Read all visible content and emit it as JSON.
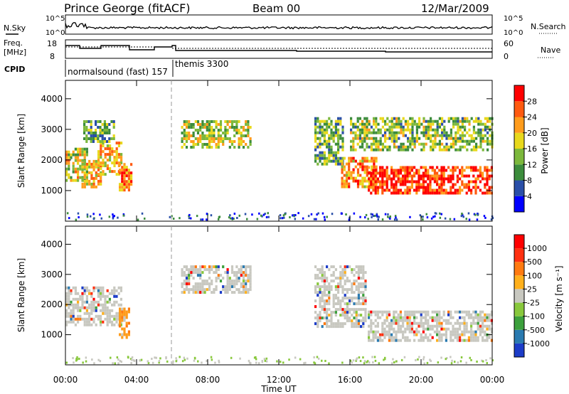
{
  "header": {
    "station": "Prince George (fitACF)",
    "beam": "Beam 00",
    "date": "12/Mar/2009"
  },
  "noise_panel": {
    "left_label": "N.Sky",
    "right_label": "N.Search",
    "left_top_tick": "10^5",
    "left_bottom_tick": "10^0",
    "right_top_tick": "10^5",
    "right_bottom_tick": "10^0"
  },
  "freq_panel": {
    "left_label_1": "Freq.",
    "left_label_2": "[MHz]",
    "right_label": "Nave",
    "left_top_tick": "18",
    "left_bottom_tick": "8",
    "right_top_tick": "60",
    "right_bottom_tick": "0"
  },
  "cpid_panel": {
    "label": "CPID",
    "mode1": "normalsound (fast) 157",
    "mode2": "themis 3300"
  },
  "colors": {
    "velocity_gray": "#c8c8c0",
    "power_high": "#ff0000",
    "power_low": "#0000ff"
  },
  "chart_data": [
    {
      "type": "heatmap",
      "name": "power",
      "ylabel": "Slant Range [km]",
      "ylim": [
        0,
        4600
      ],
      "xlim": [
        0,
        24
      ],
      "y_ticks": [
        1000,
        2000,
        3000,
        4000
      ],
      "colorbar_label": "Power [dB]",
      "colorbar_ticks": [
        "4",
        "8",
        "12",
        "16",
        "20",
        "24",
        "28"
      ],
      "colorbar_colors": [
        "#0000ff",
        "#2a4fa8",
        "#3c8c3c",
        "#7cb83c",
        "#e8d81c",
        "#ff9c1c",
        "#ff5a10",
        "#ff0000"
      ],
      "regions": [
        {
          "t0": 0.0,
          "t1": 1.3,
          "r0": 1300,
          "r1": 2400,
          "level": 0.55
        },
        {
          "t0": 0.9,
          "t1": 2.0,
          "r0": 1100,
          "r1": 2000,
          "level": 0.6
        },
        {
          "t0": 1.8,
          "t1": 3.2,
          "r0": 1500,
          "r1": 2600,
          "level": 0.65
        },
        {
          "t0": 3.0,
          "t1": 3.8,
          "r0": 1000,
          "r1": 1900,
          "level": 0.75
        },
        {
          "t0": 1.0,
          "t1": 2.8,
          "r0": 2600,
          "r1": 3300,
          "level": 0.35
        },
        {
          "t0": 6.5,
          "t1": 10.5,
          "r0": 2400,
          "r1": 3300,
          "level": 0.5
        },
        {
          "t0": 14.0,
          "t1": 15.6,
          "r0": 1800,
          "r1": 3400,
          "level": 0.4
        },
        {
          "t0": 15.5,
          "t1": 17.5,
          "r0": 1100,
          "r1": 2100,
          "level": 0.7
        },
        {
          "t0": 17.0,
          "t1": 24.0,
          "r0": 900,
          "r1": 1800,
          "level": 0.88
        },
        {
          "t0": 16.0,
          "t1": 24.0,
          "r0": 2300,
          "r1": 3400,
          "level": 0.45
        }
      ]
    },
    {
      "type": "heatmap",
      "name": "velocity",
      "ylabel": "Slant Range [km]",
      "ylim": [
        0,
        4600
      ],
      "xlim": [
        0,
        24
      ],
      "y_ticks": [
        1000,
        2000,
        3000,
        4000
      ],
      "colorbar_label": "Velocity [m s⁻¹]",
      "colorbar_ticks": [
        "1000",
        "500",
        "100",
        "25",
        "-25",
        "-100",
        "-500",
        "-1000"
      ],
      "colorbar_colors": [
        "#1c3cc8",
        "#2a7ab0",
        "#3ca03c",
        "#88c83c",
        "#c8c8c0",
        "#ffb01c",
        "#ff7a10",
        "#ff3010",
        "#ff0000"
      ],
      "regions": [
        {
          "t0": 0.0,
          "t1": 3.2,
          "r0": 1300,
          "r1": 2600,
          "level": 0.45
        },
        {
          "t0": 3.0,
          "t1": 3.7,
          "r0": 900,
          "r1": 1900,
          "level": 0.8
        },
        {
          "t0": 6.5,
          "t1": 10.5,
          "r0": 2400,
          "r1": 3300,
          "level": 0.45
        },
        {
          "t0": 14.0,
          "t1": 17.0,
          "r0": 1200,
          "r1": 3300,
          "level": 0.45
        },
        {
          "t0": 17.0,
          "t1": 24.0,
          "r0": 800,
          "r1": 1800,
          "level": 0.45
        }
      ]
    }
  ],
  "x_axis": {
    "label": "Time UT",
    "ticks": [
      "00:00",
      "04:00",
      "08:00",
      "12:00",
      "16:00",
      "20:00",
      "00:00"
    ]
  }
}
